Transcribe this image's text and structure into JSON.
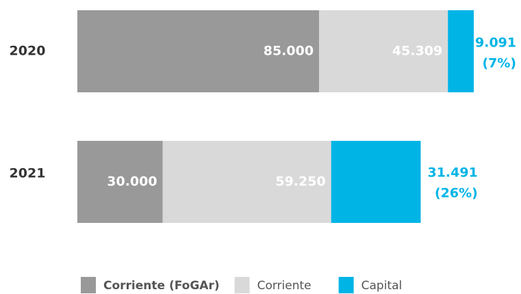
{
  "chart_data": {
    "type": "stacked_barh",
    "categories": [
      "2020",
      "2021"
    ],
    "series": [
      {
        "name": "Corriente (FoGAr)",
        "color": "#999999",
        "values": [
          85000,
          30000
        ],
        "value_labels": [
          "85.000",
          "30.000"
        ]
      },
      {
        "name": "Corriente",
        "color": "#d9d9d9",
        "values": [
          45309,
          59250
        ],
        "value_labels": [
          "45.309",
          "59.250"
        ]
      },
      {
        "name": "Capital",
        "color": "#00b4e6",
        "values": [
          9091,
          31491
        ],
        "value_labels": [
          "9.091",
          "31.491"
        ]
      }
    ],
    "capital_share": {
      "values": [
        7,
        26
      ],
      "value_labels": [
        "(7%)",
        "(26%)"
      ]
    },
    "legend": "bottom"
  }
}
